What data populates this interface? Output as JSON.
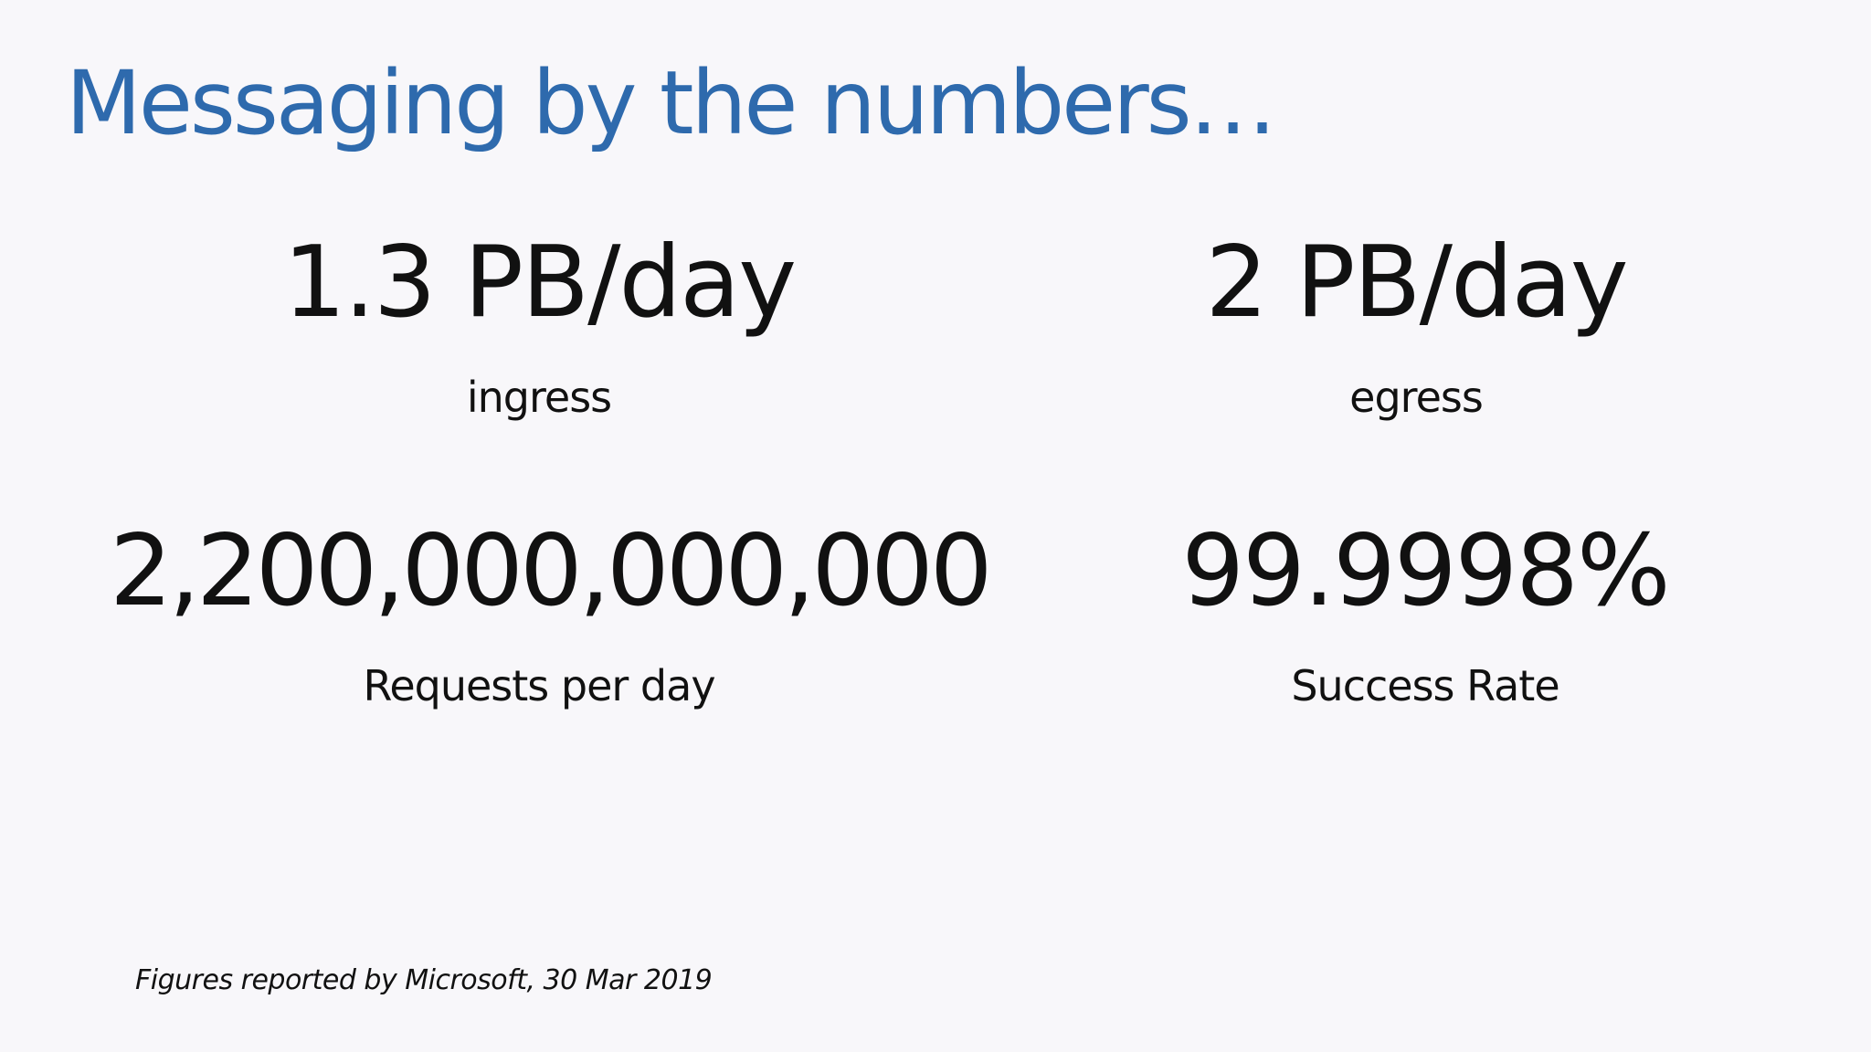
{
  "slide": {
    "title": "Messaging by the numbers…",
    "title_color": "#2e6aad",
    "stats": [
      {
        "value": "1.3 PB/day",
        "label": "ingress"
      },
      {
        "value": "2 PB/day",
        "label": "egress"
      },
      {
        "value": "2,200,000,000,000",
        "label": "Requests per day"
      },
      {
        "value": "99.9998%",
        "label": "Success Rate"
      }
    ],
    "footnote": "Figures reported by Microsoft, 30 Mar 2019"
  }
}
